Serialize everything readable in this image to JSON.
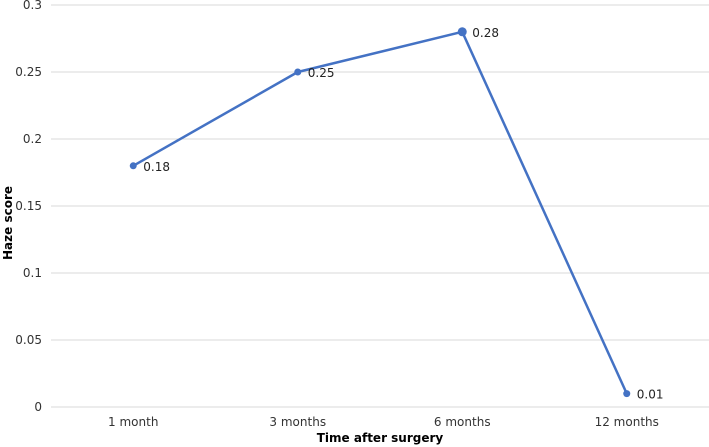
{
  "chart_data": {
    "type": "line",
    "title": "",
    "xlabel": "Time after surgery",
    "ylabel": "Haze score",
    "categories": [
      "1 month",
      "3 months",
      "6 months",
      "12 months"
    ],
    "series": [
      {
        "values": [
          0.18,
          0.25,
          0.28,
          0.01
        ],
        "color": "#4472c4"
      }
    ],
    "data_labels": [
      "0.18",
      "0.25",
      "0.28",
      "0.01"
    ],
    "yticks": [
      "0",
      "0.05",
      "0.1",
      "0.15",
      "0.2",
      "0.25",
      "0.3"
    ],
    "ylim": [
      0,
      0.3
    ],
    "grid": true,
    "legend": "none"
  }
}
